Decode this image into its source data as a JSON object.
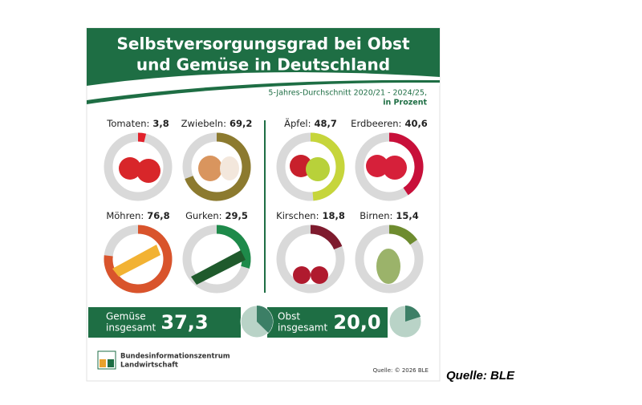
{
  "chart_data": {
    "type": "gauge",
    "title": [
      "Selbstversorgungsgrad bei Obst",
      "und Gemüse in Deutschland"
    ],
    "subtitle": [
      "5-Jahres-Durchschnitt  2020/21 - 2024/25,",
      "in Prozent"
    ],
    "ylim": [
      0,
      100
    ],
    "track_color": "#d9d9d9",
    "categories": [
      "Tomaten:",
      "Zwiebeln:",
      "Äpfel:",
      "Erdbeeren:",
      "Möhren:",
      "Gurken:",
      "Kirschen:",
      "Birnen:"
    ],
    "values": [
      3.8,
      69.2,
      48.7,
      40.6,
      76.8,
      29.5,
      18.8,
      15.4
    ],
    "value_labels": [
      "3,8",
      "69,2",
      "48,7",
      "40,6",
      "76,8",
      "29,5",
      "18,8",
      "15,4"
    ],
    "colors": [
      "#e2212b",
      "#8c7a2f",
      "#c6d53b",
      "#c8103a",
      "#d9542c",
      "#1e8a4a",
      "#7e1b2e",
      "#6e8c2f"
    ],
    "totals": [
      {
        "label": [
          "Gemüse",
          "insgesamt"
        ],
        "value": 37.3,
        "value_label": "37,3"
      },
      {
        "label": [
          "Obst",
          "insgesamt"
        ],
        "value": 20.0,
        "value_label": "20,0"
      }
    ],
    "total_color": "#3c7f66",
    "total_track_color": "#b9d3c7",
    "org": [
      "Bundesinformationszentrum",
      "Landwirtschaft"
    ],
    "source": "Quelle: © 2026 BLE",
    "caption": "Quelle: BLE"
  }
}
